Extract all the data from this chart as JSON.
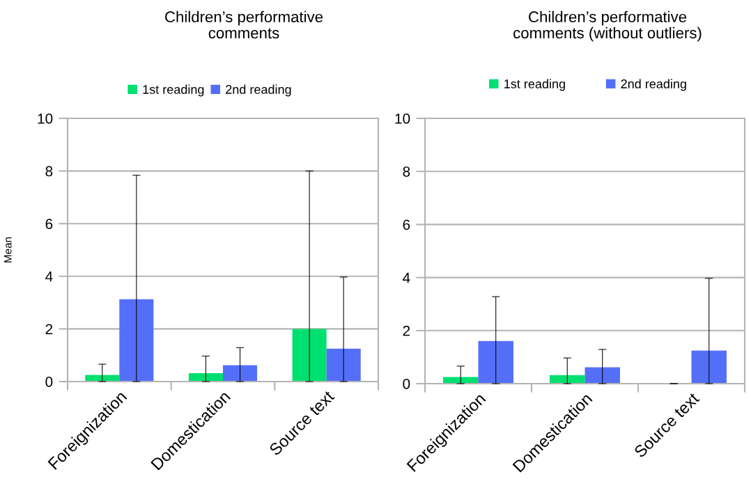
{
  "chart_data": [
    {
      "type": "bar",
      "title": "Children’s performative\ncomments",
      "ylabel": "Mean",
      "categories": [
        "Foreignization",
        "Domestication",
        "Source text"
      ],
      "series": [
        {
          "name": "1st reading",
          "color": "#00e070",
          "values": [
            0.25,
            0.32,
            2
          ],
          "errors": [
            [
              0,
              0.66
            ],
            [
              0,
              0.97
            ],
            [
              0,
              8
            ]
          ]
        },
        {
          "name": "2nd reading",
          "color": "#546ff7",
          "values": [
            3.13,
            0.62,
            1.25
          ],
          "errors": [
            [
              0,
              7.84
            ],
            [
              0,
              1.29
            ],
            [
              0,
              3.97
            ]
          ]
        }
      ],
      "ylim": [
        0,
        10
      ],
      "yticks": [
        0,
        2,
        4,
        6,
        8,
        10
      ],
      "grid": "y",
      "legend": "top"
    },
    {
      "type": "bar",
      "title": "Children’s performative\ncomments (without outliers)",
      "categories": [
        "Foreignization",
        "Domestication",
        "Source text"
      ],
      "series": [
        {
          "name": "1st reading",
          "color": "#00e070",
          "values": [
            0.25,
            0.32,
            0
          ],
          "errors": [
            [
              0,
              0.66
            ],
            [
              0,
              0.97
            ],
            [
              0,
              0
            ]
          ]
        },
        {
          "name": "2nd reading",
          "color": "#546ff7",
          "values": [
            1.61,
            0.62,
            1.25
          ],
          "errors": [
            [
              0,
              3.28
            ],
            [
              0,
              1.29
            ],
            [
              0,
              3.97
            ]
          ]
        }
      ],
      "ylim": [
        0,
        10
      ],
      "yticks": [
        0,
        2,
        4,
        6,
        8,
        10
      ],
      "grid": "y",
      "legend": "top"
    }
  ]
}
